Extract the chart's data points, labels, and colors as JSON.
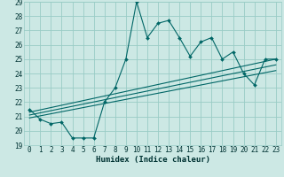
{
  "title": "",
  "xlabel": "Humidex (Indice chaleur)",
  "ylabel": "",
  "bg_color": "#cce8e4",
  "grid_color": "#99ccc6",
  "line_color": "#006666",
  "xlim": [
    -0.5,
    23.5
  ],
  "ylim": [
    19,
    29
  ],
  "yticks": [
    19,
    20,
    21,
    22,
    23,
    24,
    25,
    26,
    27,
    28,
    29
  ],
  "xticks": [
    0,
    1,
    2,
    3,
    4,
    5,
    6,
    7,
    8,
    9,
    10,
    11,
    12,
    13,
    14,
    15,
    16,
    17,
    18,
    19,
    20,
    21,
    22,
    23
  ],
  "main_y": [
    21.5,
    20.8,
    20.5,
    20.6,
    19.5,
    19.5,
    19.5,
    22.0,
    23.0,
    25.0,
    29.0,
    26.5,
    27.5,
    27.7,
    26.5,
    25.2,
    26.2,
    26.5,
    25.0,
    25.5,
    24.0,
    23.2,
    25.0,
    25.0
  ],
  "reg_lines": [
    {
      "x0": 0,
      "y0": 21.3,
      "x1": 23,
      "y1": 25.0
    },
    {
      "x0": 0,
      "y0": 21.1,
      "x1": 23,
      "y1": 24.6
    },
    {
      "x0": 0,
      "y0": 20.9,
      "x1": 23,
      "y1": 24.2
    }
  ],
  "tick_fontsize": 5.5,
  "xlabel_fontsize": 6.5,
  "marker_size": 2.0,
  "line_width": 0.8
}
